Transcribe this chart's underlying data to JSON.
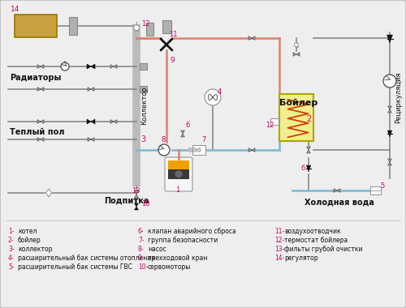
{
  "bg_color": "#eeeeee",
  "border_color": "#bbbbbb",
  "legend_items_col1": [
    [
      "1",
      "котел"
    ],
    [
      "2",
      "бойлер"
    ],
    [
      "3",
      "коллектор"
    ],
    [
      "4",
      "расширительный бак системы отопления"
    ],
    [
      "5",
      "расширительный бак системы ГВС"
    ]
  ],
  "legend_items_col2": [
    [
      "6",
      "клапан аварийного сброса"
    ],
    [
      "7",
      "группа безопасности"
    ],
    [
      "8",
      "насос"
    ],
    [
      "9",
      "трехходовой кран"
    ],
    [
      "10",
      "сервомоторы"
    ]
  ],
  "legend_items_col3": [
    [
      "11",
      "воздухоотводчик"
    ],
    [
      "12",
      "термостат бойлера"
    ],
    [
      "13",
      "фильты грубой очистки"
    ],
    [
      "14",
      "регулятор"
    ]
  ],
  "label_radiatory": "Радиаторы",
  "label_teplyy_pol": "Теплый пол",
  "label_podpitka": "Подпитка",
  "label_kolektor": "Коллектор",
  "label_boyler": "Бойлер",
  "label_holodnaya_voda": "Холодная вода",
  "label_retsirkulyatsiya": "Рециркуляция",
  "color_hot": "#d9826a",
  "color_cold": "#7ab8d4",
  "color_pipe": "#888888",
  "color_boiler_fill": "#f0ee90",
  "color_boiler_border": "#aaa800",
  "color_number": "#cc0066",
  "color_black": "#111111",
  "color_dark_gray": "#555555",
  "color_gray": "#999999",
  "color_light_gray": "#cccccc",
  "color_expansion_tank": "#c8a040",
  "color_collector": "#bbbbbb",
  "color_valve_black": "#111111",
  "color_valve_gray": "#888888"
}
